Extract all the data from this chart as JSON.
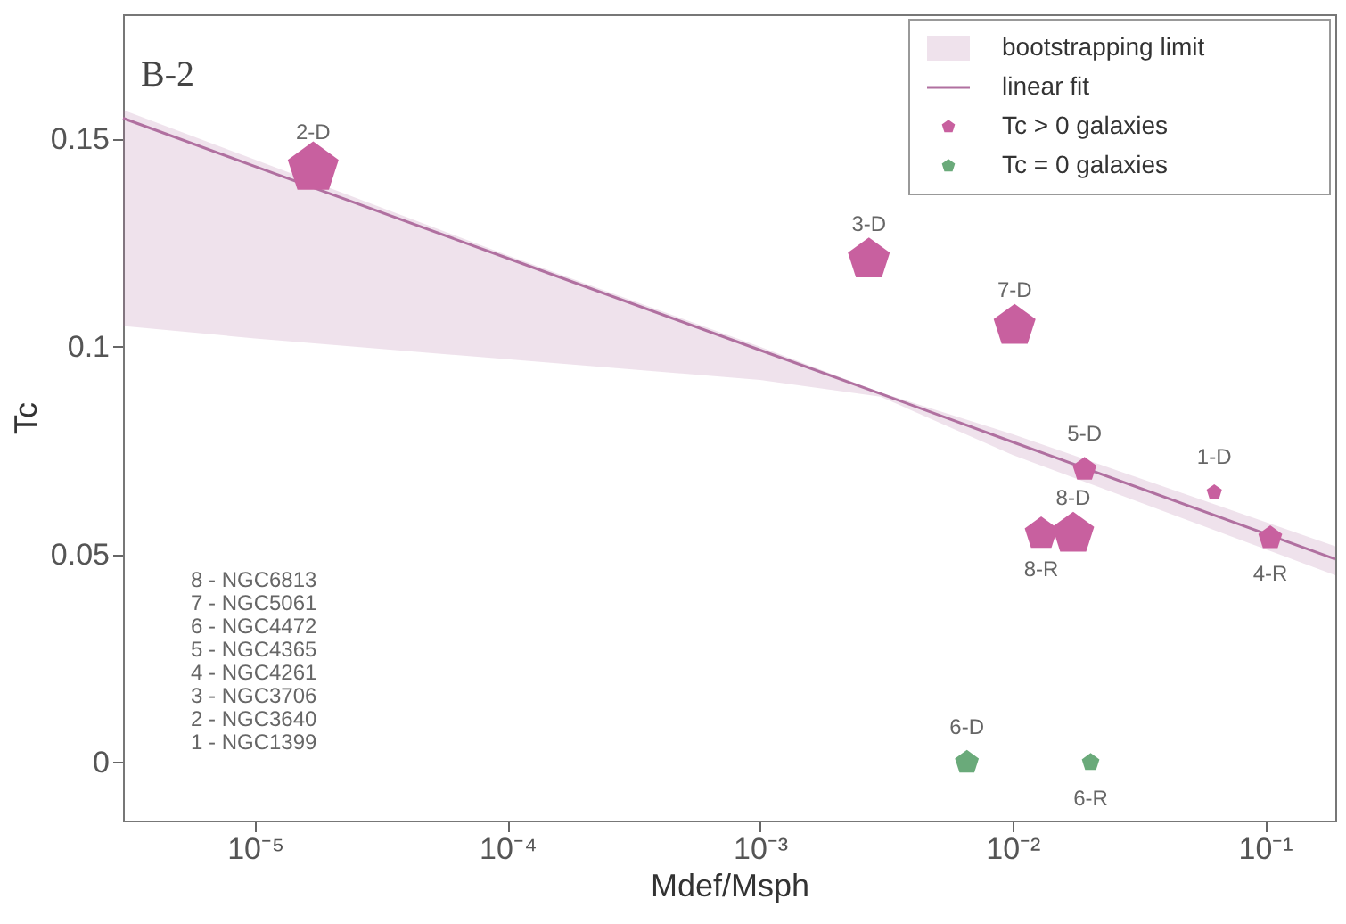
{
  "chart_data": {
    "type": "bubble",
    "xlabel": "Mdef/Msph",
    "ylabel": "Tc",
    "log": "x",
    "xlim": [
      3e-06,
      0.19
    ],
    "ylim": [
      -0.014,
      0.18
    ],
    "xticks": [
      {
        "value": 1e-05,
        "label": "10⁻⁵"
      },
      {
        "value": 0.0001,
        "label": "10⁻⁴"
      },
      {
        "value": 0.001,
        "label": "10⁻³"
      },
      {
        "value": 0.01,
        "label": "10⁻²"
      },
      {
        "value": 0.1,
        "label": "10⁻¹"
      }
    ],
    "yticks": [
      0,
      0.05,
      0.1,
      0.15
    ],
    "grid": false,
    "legend": "top right",
    "series": [
      {
        "name": "linear fit",
        "type": "line",
        "color": "#b070a0",
        "x": [
          3e-06,
          1e-05,
          0.0001,
          0.001,
          0.003,
          0.01,
          0.19
        ],
        "values": [
          0.155,
          0.1434,
          0.1213,
          0.0992,
          0.0887,
          0.0771,
          0.0489
        ],
        "upper": [
          0.157,
          0.145,
          0.122,
          0.1,
          0.089,
          0.079,
          0.052
        ],
        "lower": [
          0.105,
          0.102,
          0.097,
          0.092,
          0.088,
          0.074,
          0.045
        ]
      },
      {
        "name": "Tc > 0 galaxies",
        "type": "bubble",
        "color": "#c8609f",
        "x": [
          1.7e-05,
          0.0027,
          0.0102,
          0.0193,
          0.063,
          0.105,
          0.0174,
          0.013
        ],
        "values": [
          0.143,
          0.121,
          0.105,
          0.0705,
          0.065,
          0.054,
          0.055,
          0.055
        ],
        "sizes": [
          1,
          0.68,
          0.68,
          0.22,
          0.09,
          0.22,
          0.68,
          0.42
        ]
      },
      {
        "name": "Tc = 0 galaxies",
        "type": "bubble",
        "color": "#6aaa7a",
        "x": [
          0.0066,
          0.0204
        ],
        "values": [
          0,
          0
        ],
        "sizes": [
          0.22,
          0.12
        ]
      }
    ],
    "annotations": [
      "B-2",
      "8 - NGC6813\n7 - NGC5061\n6 - NGC4472\n5 - NGC4365\n4 - NGC4261\n3 - NGC3706\n2 - NGC3640\n1 - NGC1399",
      "bootstrapping limit",
      {
        "text": "2-D",
        "x": 1.7e-05,
        "y": 0.143
      },
      {
        "text": "3-D",
        "x": 0.0027,
        "y": 0.121
      },
      {
        "text": "7-D",
        "x": 0.0102,
        "y": 0.105
      },
      {
        "text": "5-D",
        "x": 0.0193,
        "y": 0.0705
      },
      {
        "text": "1-D",
        "x": 0.063,
        "y": 0.065
      },
      {
        "text": "8-D",
        "x": 0.0174,
        "y": 0.055
      },
      {
        "text": "8-R",
        "x": 0.013,
        "y": 0.055
      },
      {
        "text": "4-R",
        "x": 0.105,
        "y": 0.054
      },
      {
        "text": "6-D",
        "x": 0.0066,
        "y": 0
      },
      {
        "text": "6-R",
        "x": 0.0204,
        "y": 0
      }
    ]
  }
}
